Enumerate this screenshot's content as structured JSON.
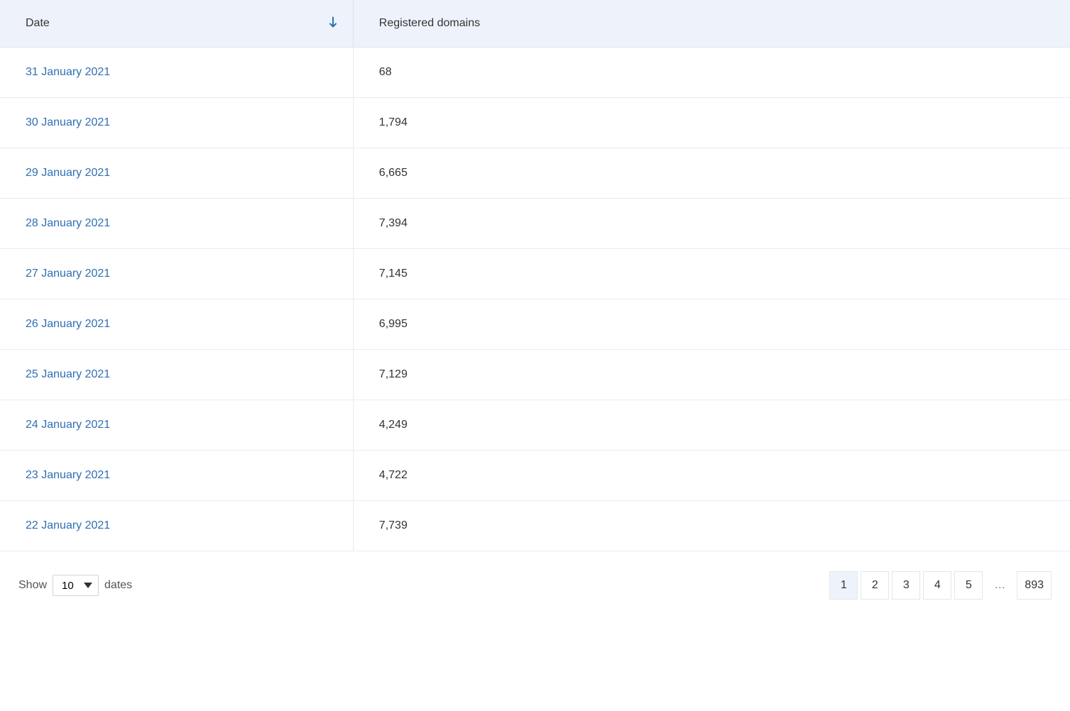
{
  "table": {
    "columns": [
      {
        "key": "date",
        "label": "Date",
        "sortable": true,
        "sort_direction": "desc",
        "width_pct": 33,
        "link_color": "#2f6fb5"
      },
      {
        "key": "count",
        "label": "Registered domains",
        "sortable": false,
        "width_pct": 67
      }
    ],
    "header_bg": "#eef3fb",
    "border_color": "#e8ecef",
    "rows": [
      {
        "date": "31 January 2021",
        "count": "68"
      },
      {
        "date": "30 January 2021",
        "count": "1,794"
      },
      {
        "date": "29 January 2021",
        "count": "6,665"
      },
      {
        "date": "28 January 2021",
        "count": "7,394"
      },
      {
        "date": "27 January 2021",
        "count": "7,145"
      },
      {
        "date": "26 January 2021",
        "count": "6,995"
      },
      {
        "date": "25 January 2021",
        "count": "7,129"
      },
      {
        "date": "24 January 2021",
        "count": "4,249"
      },
      {
        "date": "23 January 2021",
        "count": "4,722"
      },
      {
        "date": "22 January 2021",
        "count": "7,739"
      }
    ]
  },
  "footer": {
    "show_label_prefix": "Show",
    "show_label_suffix": "dates",
    "page_size_selected": "10",
    "page_size_options": [
      "10"
    ],
    "pagination": {
      "current": 1,
      "pages_head": [
        "1",
        "2",
        "3",
        "4",
        "5"
      ],
      "ellipsis": "…",
      "last_page": "893",
      "active_bg": "#eef3fb",
      "btn_border": "#e3e7ea"
    }
  }
}
